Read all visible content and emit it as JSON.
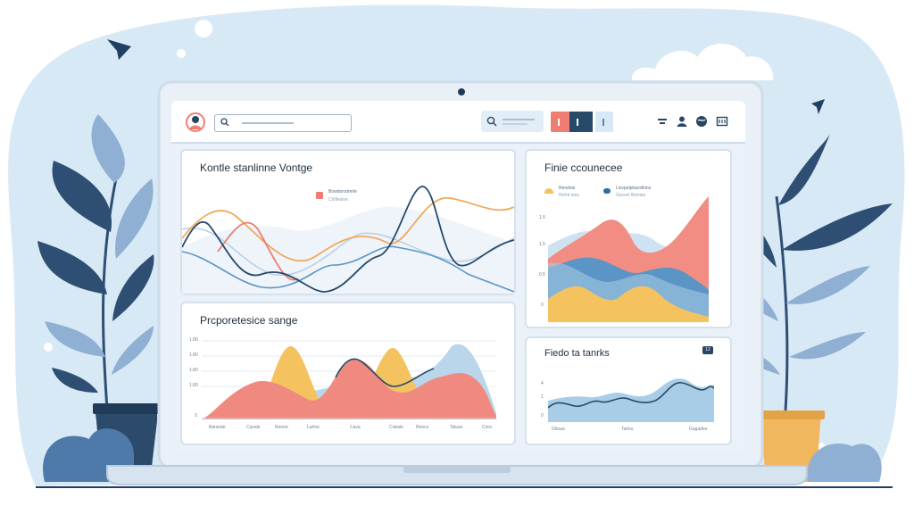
{
  "colors": {
    "sky_blob": "#d8e9f6",
    "device_frame": "#e9f0f7",
    "screen_bg": "#eaf1f8",
    "navy": "#274a6b",
    "coral": "#ef7d72",
    "orange": "#f0a85c",
    "yellow": "#f5c260",
    "blue": "#5a95c6",
    "light_blue": "#a9cde6",
    "leaf_dark": "#2e4f73",
    "leaf_light": "#8fb0d2",
    "pot": "#f1b75f"
  },
  "icons": {
    "toolbar": [
      "avatar-icon",
      "search-icon",
      "find-icon",
      "filter-icon",
      "user-icon",
      "globe-icon",
      "grid-icon"
    ],
    "decor": [
      "paper-plane-icon",
      "cloud-icon",
      "plant-icon",
      "pot-icon"
    ]
  },
  "topbar": {
    "search": {
      "value": ""
    },
    "find": {
      "value": ""
    }
  },
  "panels": {
    "top_left": {
      "title": "Kontle stanlinne Vontge",
      "legend": {
        "label": "Bowdonstrerle",
        "sub": "Chiflesine"
      }
    },
    "bottom_left": {
      "title": "Prcporetesice sange",
      "y_ticks": [
        "1.80",
        "1.80",
        "1.80",
        "1.80",
        "0"
      ],
      "x_ticks": [
        "Baneate",
        "Cavale",
        "Renoe",
        "Lahne",
        "Cava",
        "Cobale",
        "Rencs",
        "Taluas",
        "Cora"
      ]
    },
    "top_right": {
      "title": "Finie ccounecee",
      "legend": [
        {
          "label": "Rendsie",
          "sub": "Refrd oms"
        },
        {
          "label": "Lisvpelpbacelkine",
          "sub": "Gisrvel ffomiee"
        }
      ],
      "y_ticks": [
        "1.5",
        "1.5",
        "0.5",
        "0"
      ]
    },
    "bottom_right": {
      "title": "Fiedo ta tanrks",
      "badge": "12",
      "y_ticks": [
        "4",
        "1",
        "0"
      ],
      "x_ticks": [
        "Gitoaa",
        "Tarlos",
        "Gagades"
      ]
    }
  }
}
